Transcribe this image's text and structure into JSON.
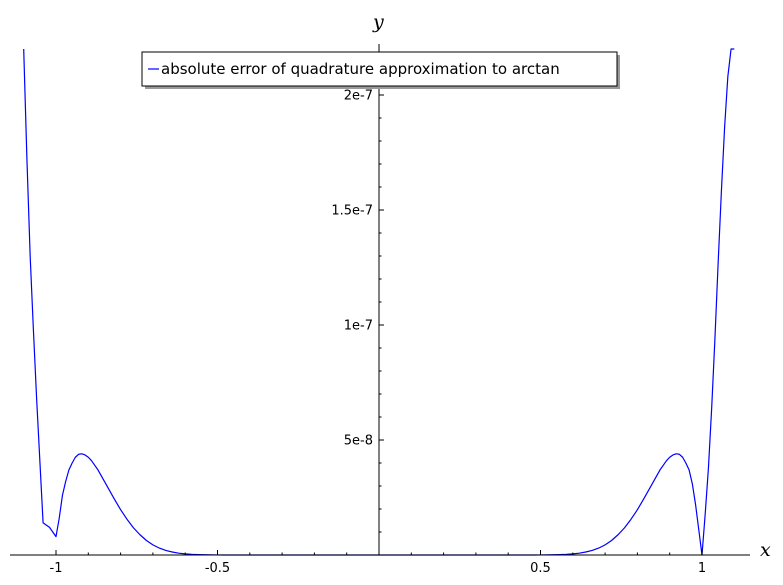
{
  "chart_data": {
    "type": "line",
    "xlabel": "x",
    "ylabel": "y",
    "xlim": [
      -1.1,
      1.1
    ],
    "ylim": [
      0,
      2.2e-07
    ],
    "x_ticks": [
      {
        "value": -1,
        "label": "-1"
      },
      {
        "value": -0.5,
        "label": "-0.5"
      },
      {
        "value": 0.5,
        "label": "0.5"
      },
      {
        "value": 1,
        "label": "1"
      }
    ],
    "y_ticks": [
      {
        "value": 5e-08,
        "label": "5e-8"
      },
      {
        "value": 1e-07,
        "label": "1e-7"
      },
      {
        "value": 1.5e-07,
        "label": "1.5e-7"
      },
      {
        "value": 2e-07,
        "label": "2e-7"
      }
    ],
    "legend": {
      "position": "top-center"
    },
    "series": [
      {
        "name": "absolute error of quadrature approximation to arctan",
        "color": "#0000ff",
        "x": [
          -1.1,
          -1.09,
          -1.08,
          -1.07,
          -1.06,
          -1.05,
          -1.04,
          -1.03,
          -1.02,
          -1.01,
          -1.0,
          -0.99,
          -0.98,
          -0.97,
          -0.96,
          -0.95,
          -0.94,
          -0.93,
          -0.92,
          -0.91,
          -0.9,
          -0.89,
          -0.88,
          -0.87,
          -0.86,
          -0.85,
          -0.84,
          -0.82,
          -0.8,
          -0.78,
          -0.76,
          -0.74,
          -0.72,
          -0.7,
          -0.68,
          -0.66,
          -0.64,
          -0.62,
          -0.6,
          -0.58,
          -0.56,
          -0.54,
          -0.52,
          -0.5,
          -0.48,
          -0.46,
          -0.44,
          -0.42,
          -0.4,
          -0.35,
          -0.3,
          -0.2,
          -0.1,
          0.0,
          0.1,
          0.2,
          0.3,
          0.35,
          0.4,
          0.42,
          0.44,
          0.46,
          0.48,
          0.5,
          0.52,
          0.54,
          0.56,
          0.58,
          0.6,
          0.62,
          0.64,
          0.66,
          0.68,
          0.7,
          0.72,
          0.74,
          0.76,
          0.78,
          0.8,
          0.82,
          0.84,
          0.85,
          0.86,
          0.87,
          0.88,
          0.89,
          0.9,
          0.91,
          0.92,
          0.93,
          0.94,
          0.95,
          0.96,
          0.97,
          0.98,
          0.99,
          1.0,
          1.01,
          1.02,
          1.03,
          1.04,
          1.05,
          1.06,
          1.07,
          1.08,
          1.09,
          1.1
        ],
        "y": [
          2.2e-07,
          1.72e-07,
          1.3e-07,
          9.8e-08,
          6.8e-08,
          4.1e-08,
          1.4e-08,
          1.3e-08,
          1.2e-08,
          1e-08,
          8e-09,
          1.6e-08,
          2.6e-08,
          3.2e-08,
          3.7e-08,
          4e-08,
          4.25e-08,
          4.38e-08,
          4.4e-08,
          4.35e-08,
          4.25e-08,
          4.1e-08,
          3.9e-08,
          3.7e-08,
          3.45e-08,
          3.2e-08,
          2.95e-08,
          2.45e-08,
          1.97e-08,
          1.55e-08,
          1.18e-08,
          8.8e-09,
          6.3e-09,
          4.4e-09,
          3e-09,
          2e-09,
          1.3e-09,
          8e-10,
          5e-10,
          3e-10,
          1.8e-10,
          1e-10,
          6e-11,
          3e-11,
          1.5e-11,
          8e-12,
          4e-12,
          2e-12,
          1e-12,
          0,
          0,
          0,
          0,
          0,
          0,
          0,
          0,
          0,
          1e-12,
          2e-12,
          4e-12,
          8e-12,
          1.5e-11,
          3e-11,
          6e-11,
          1e-10,
          1.8e-10,
          3e-10,
          5e-10,
          8e-10,
          1.3e-09,
          2e-09,
          3e-09,
          4.4e-09,
          6.3e-09,
          8.8e-09,
          1.18e-08,
          1.55e-08,
          1.97e-08,
          2.45e-08,
          2.95e-08,
          3.2e-08,
          3.45e-08,
          3.7e-08,
          3.9e-08,
          4.1e-08,
          4.25e-08,
          4.35e-08,
          4.4e-08,
          4.38e-08,
          4.25e-08,
          4e-08,
          3.7e-08,
          3.1e-08,
          2.2e-08,
          1.1e-08,
          0,
          1.8e-08,
          3.8e-08,
          6.4e-08,
          9.4e-08,
          1.27e-07,
          1.58e-07,
          1.86e-07,
          2.08e-07,
          2.2e-07,
          2.2e-07
        ]
      }
    ]
  }
}
